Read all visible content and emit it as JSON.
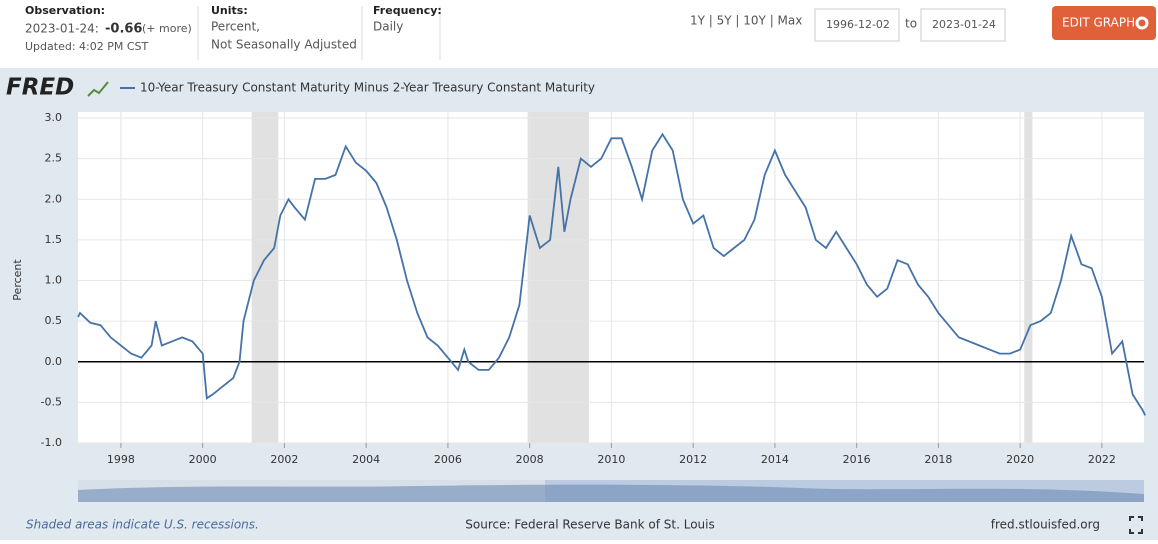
{
  "header": {
    "observation_label": "Observation:",
    "observation_date": "2023-01-24:",
    "observation_value": "-0.66",
    "more": "(+ more)",
    "updated": "Updated: 4:02 PM CST",
    "units_label": "Units:",
    "units_line1": "Percent,",
    "units_line2": "Not Seasonally Adjusted",
    "frequency_label": "Frequency:",
    "frequency": "Daily",
    "ranges": "1Y | 5Y | 10Y | Max",
    "start_date": "1996-12-02",
    "to": "to",
    "end_date": "2023-01-24",
    "edit_button": "EDIT GRAPH"
  },
  "logo": "FRED",
  "footer": {
    "note": "Shaded areas indicate U.S. recessions.",
    "source": "Source: Federal Reserve Bank of St. Louis",
    "site": "fred.stlouisfed.org"
  },
  "chart_data": {
    "type": "line",
    "ylabel": "Percent",
    "x": [
      1996.95,
      1997.0,
      1997.25,
      1997.5,
      1997.75,
      1998.0,
      1998.25,
      1998.5,
      1998.75,
      1998.85,
      1999.0,
      1999.25,
      1999.5,
      1999.75,
      2000.0,
      2000.1,
      2000.25,
      2000.5,
      2000.75,
      2000.9,
      2001.0,
      2001.25,
      2001.5,
      2001.75,
      2001.9,
      2002.1,
      2002.25,
      2002.5,
      2002.75,
      2003.0,
      2003.25,
      2003.5,
      2003.75,
      2004.0,
      2004.25,
      2004.5,
      2004.75,
      2005.0,
      2005.25,
      2005.5,
      2005.75,
      2006.0,
      2006.25,
      2006.4,
      2006.5,
      2006.75,
      2007.0,
      2007.25,
      2007.5,
      2007.75,
      2008.0,
      2008.25,
      2008.5,
      2008.7,
      2008.85,
      2009.0,
      2009.25,
      2009.5,
      2009.75,
      2010.0,
      2010.25,
      2010.5,
      2010.75,
      2011.0,
      2011.25,
      2011.5,
      2011.75,
      2012.0,
      2012.25,
      2012.5,
      2012.75,
      2013.0,
      2013.25,
      2013.5,
      2013.75,
      2014.0,
      2014.25,
      2014.5,
      2014.75,
      2015.0,
      2015.25,
      2015.5,
      2015.75,
      2016.0,
      2016.25,
      2016.5,
      2016.75,
      2017.0,
      2017.25,
      2017.5,
      2017.75,
      2018.0,
      2018.25,
      2018.5,
      2018.75,
      2019.0,
      2019.25,
      2019.5,
      2019.75,
      2020.0,
      2020.25,
      2020.5,
      2020.75,
      2021.0,
      2021.25,
      2021.5,
      2021.75,
      2022.0,
      2022.25,
      2022.5,
      2022.75,
      2023.0,
      2023.06
    ],
    "series": [
      {
        "name": "10-Year Treasury Constant Maturity Minus 2-Year Treasury Constant Maturity",
        "color": "#4572a7",
        "values": [
          0.55,
          0.6,
          0.48,
          0.45,
          0.3,
          0.2,
          0.1,
          0.05,
          0.2,
          0.5,
          0.2,
          0.25,
          0.3,
          0.25,
          0.1,
          -0.45,
          -0.4,
          -0.3,
          -0.2,
          0.0,
          0.5,
          1.0,
          1.25,
          1.4,
          1.8,
          2.0,
          1.9,
          1.75,
          2.25,
          2.25,
          2.3,
          2.65,
          2.45,
          2.35,
          2.2,
          1.9,
          1.5,
          1.0,
          0.6,
          0.3,
          0.2,
          0.05,
          -0.1,
          0.15,
          0.0,
          -0.1,
          -0.1,
          0.05,
          0.3,
          0.7,
          1.8,
          1.4,
          1.5,
          2.4,
          1.6,
          2.0,
          2.5,
          2.4,
          2.5,
          2.75,
          2.75,
          2.4,
          2.0,
          2.6,
          2.8,
          2.6,
          2.0,
          1.7,
          1.8,
          1.4,
          1.3,
          1.4,
          1.5,
          1.75,
          2.3,
          2.6,
          2.3,
          2.1,
          1.9,
          1.5,
          1.4,
          1.6,
          1.4,
          1.2,
          0.95,
          0.8,
          0.9,
          1.25,
          1.2,
          0.95,
          0.8,
          0.6,
          0.45,
          0.3,
          0.25,
          0.2,
          0.15,
          0.1,
          0.1,
          0.15,
          0.45,
          0.5,
          0.6,
          1.0,
          1.55,
          1.2,
          1.15,
          0.8,
          0.1,
          0.25,
          -0.4,
          -0.6,
          -0.66
        ]
      }
    ],
    "recessions": [
      [
        2001.2,
        2001.85
      ],
      [
        2007.95,
        2009.45
      ],
      [
        2020.1,
        2020.3
      ]
    ],
    "xlim": [
      1996.95,
      2023.03
    ],
    "xticks": [
      1998,
      2000,
      2002,
      2004,
      2006,
      2008,
      2010,
      2012,
      2014,
      2016,
      2018,
      2020,
      2022
    ],
    "ylim": [
      -1,
      3
    ],
    "yticks": [
      {
        "value": -1,
        "label": "-1.0"
      },
      -0.5,
      {
        "value": 0,
        "label": "0.0"
      },
      0.5,
      {
        "value": 1,
        "label": "1.0"
      },
      1.5,
      {
        "value": 2,
        "label": "2.0"
      },
      2.5,
      {
        "value": 3,
        "label": "3.0"
      }
    ],
    "grid": true,
    "zero_line": true
  }
}
